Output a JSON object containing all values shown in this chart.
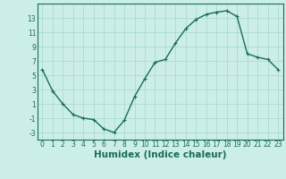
{
  "x": [
    0,
    1,
    2,
    3,
    4,
    5,
    6,
    7,
    8,
    9,
    10,
    11,
    12,
    13,
    14,
    15,
    16,
    17,
    18,
    19,
    20,
    21,
    22,
    23
  ],
  "y": [
    5.8,
    2.8,
    1.0,
    -0.5,
    -1.0,
    -1.2,
    -2.5,
    -3.0,
    -1.3,
    2.0,
    4.5,
    6.8,
    7.2,
    9.5,
    11.5,
    12.8,
    13.5,
    13.8,
    14.0,
    13.2,
    8.0,
    7.5,
    7.2,
    5.8
  ],
  "line_color": "#1a6b5a",
  "marker": "+",
  "marker_size": 3,
  "bg_color": "#cceee8",
  "grid_color": "#aaddcc",
  "xlabel": "Humidex (Indice chaleur)",
  "xlim": [
    -0.5,
    23.5
  ],
  "ylim": [
    -4,
    15
  ],
  "yticks": [
    -3,
    -1,
    1,
    3,
    5,
    7,
    9,
    11,
    13
  ],
  "xticks": [
    0,
    1,
    2,
    3,
    4,
    5,
    6,
    7,
    8,
    9,
    10,
    11,
    12,
    13,
    14,
    15,
    16,
    17,
    18,
    19,
    20,
    21,
    22,
    23
  ],
  "tick_label_fontsize": 5.5,
  "xlabel_fontsize": 7.5,
  "line_width": 1.0
}
